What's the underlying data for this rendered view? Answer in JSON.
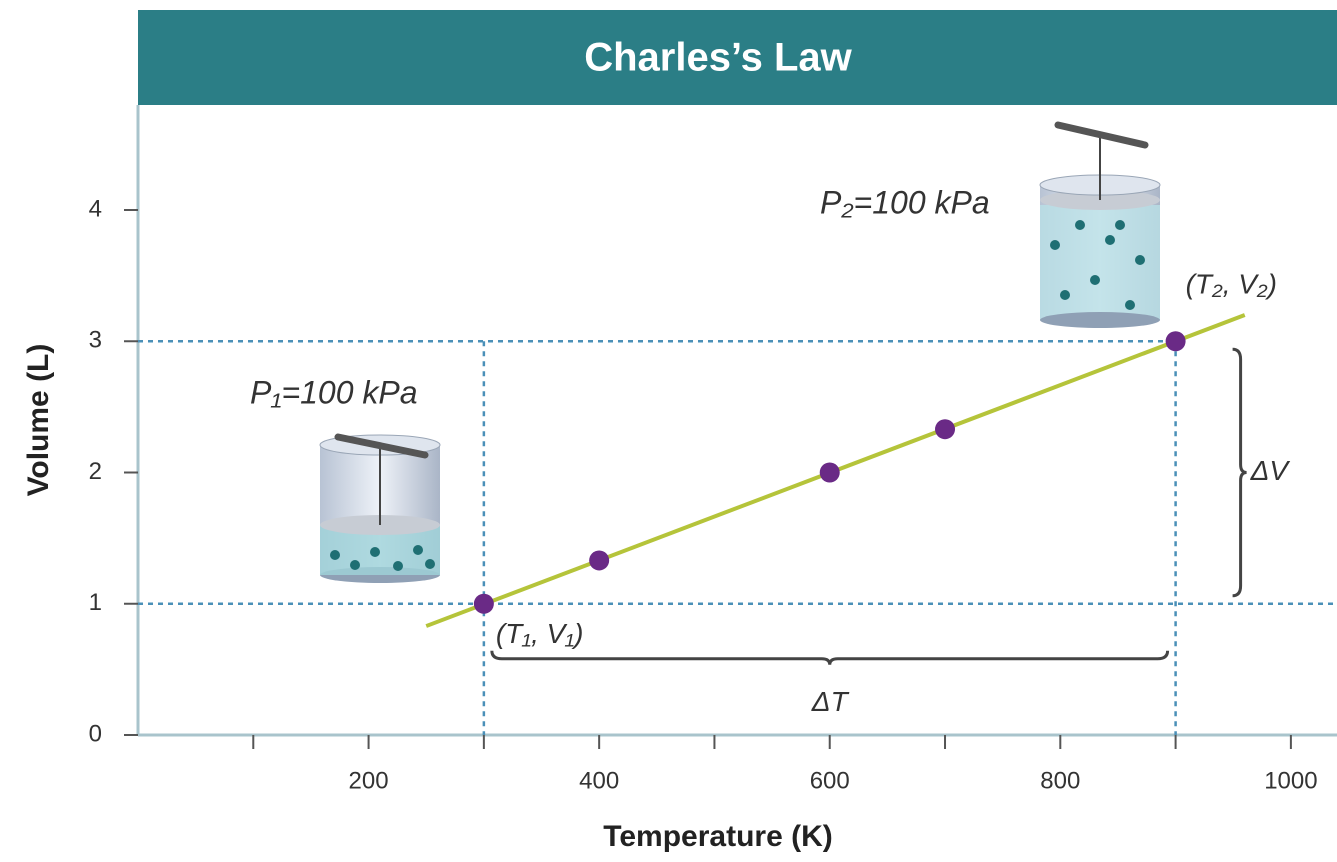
{
  "chart_data": {
    "type": "scatter",
    "title": "Charles’s Law",
    "x_label": "Temperature (K)",
    "y_label": "Volume (L)",
    "x": [
      300,
      400,
      600,
      700,
      900
    ],
    "values": [
      1,
      1.33,
      2,
      2.33,
      3
    ],
    "color": "#6a2a86",
    "fit_line": {
      "x": [
        250,
        960
      ],
      "values": [
        0.83,
        3.2
      ],
      "color": "#b5c43a"
    },
    "xlim": [
      0,
      1040
    ],
    "ylim": [
      0,
      4.8
    ],
    "xticks": [
      200,
      400,
      600,
      800,
      1000
    ],
    "xminor_ticks": [
      100,
      300,
      500,
      700,
      900
    ],
    "yticks": [
      0,
      1,
      2,
      3,
      4
    ],
    "annotations": {
      "p1": "P₁=100 kPa",
      "p2": "P₂=100 kPa",
      "point1": "(T₁, V₁)",
      "point2": "(T₂, V₂)",
      "delta_t": "ΔT",
      "delta_v": "ΔV"
    }
  }
}
